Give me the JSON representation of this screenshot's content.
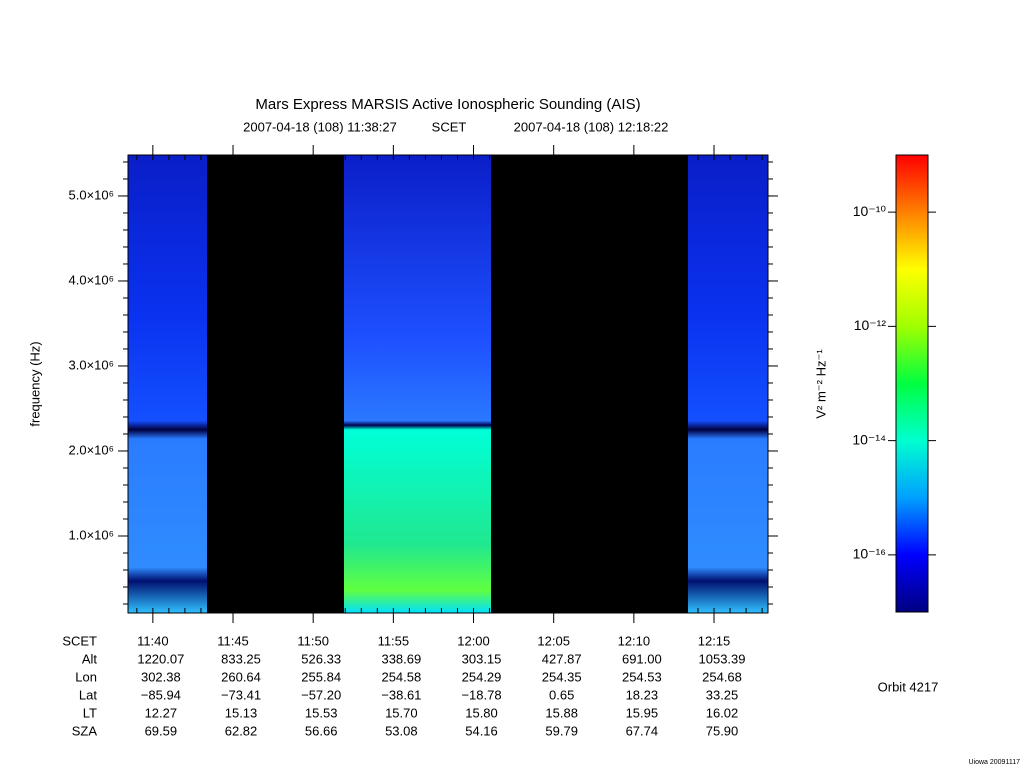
{
  "chart_data": {
    "type": "spectrogram",
    "title": "Mars Express MARSIS Active Ionospheric Sounding (AIS)",
    "scet_start": "2007-04-18 (108) 11:38:27",
    "scet_label": "SCET",
    "scet_end": "2007-04-18 (108) 12:18:22",
    "ylabel": "frequency (Hz)",
    "ylim": [
      94000,
      5482000
    ],
    "yticks": [
      {
        "value": 1000000,
        "label": "1.0×10⁶"
      },
      {
        "value": 2000000,
        "label": "2.0×10⁶"
      },
      {
        "value": 3000000,
        "label": "3.0×10⁶"
      },
      {
        "value": 4000000,
        "label": "4.0×10⁶"
      },
      {
        "value": 5000000,
        "label": "5.0×10⁶"
      }
    ],
    "xticks": [
      "11:40",
      "11:45",
      "11:50",
      "11:55",
      "12:00",
      "12:05",
      "12:10",
      "12:15"
    ],
    "zlabel": "V² m⁻² Hz⁻¹",
    "zscale": "log",
    "zlim": [
      1e-17,
      1e-09
    ],
    "zticks": [
      {
        "value": 1e-16,
        "label": "10⁻¹⁶"
      },
      {
        "value": 1e-14,
        "label": "10⁻¹⁴"
      },
      {
        "value": 1e-12,
        "label": "10⁻¹²"
      },
      {
        "value": 1e-10,
        "label": "10⁻¹⁰"
      }
    ],
    "colormap": [
      "#000080",
      "#0000ff",
      "#00a0ff",
      "#00ffd0",
      "#00ff40",
      "#a0ff00",
      "#ffff00",
      "#ff8000",
      "#ff0000"
    ]
  },
  "ephemeris": {
    "rows": [
      {
        "name": "Alt",
        "values": [
          "1220.07",
          "833.25",
          "526.33",
          "338.69",
          "303.15",
          "427.87",
          "691.00",
          "1053.39"
        ]
      },
      {
        "name": "Lon",
        "values": [
          "302.38",
          "260.64",
          "255.84",
          "254.58",
          "254.29",
          "254.35",
          "254.53",
          "254.68"
        ]
      },
      {
        "name": "Lat",
        "values": [
          "−85.94",
          "−73.41",
          "−57.20",
          "−38.61",
          "−18.78",
          "0.65",
          "18.23",
          "33.25"
        ]
      },
      {
        "name": "LT",
        "values": [
          "12.27",
          "15.13",
          "15.53",
          "15.70",
          "15.80",
          "15.88",
          "15.95",
          "16.02"
        ]
      },
      {
        "name": "SZA",
        "values": [
          "69.59",
          "62.82",
          "56.66",
          "53.08",
          "54.16",
          "59.79",
          "67.74",
          "75.90"
        ]
      }
    ]
  },
  "orbit": "Orbit 4217",
  "credit": "Uiowa 20091117"
}
